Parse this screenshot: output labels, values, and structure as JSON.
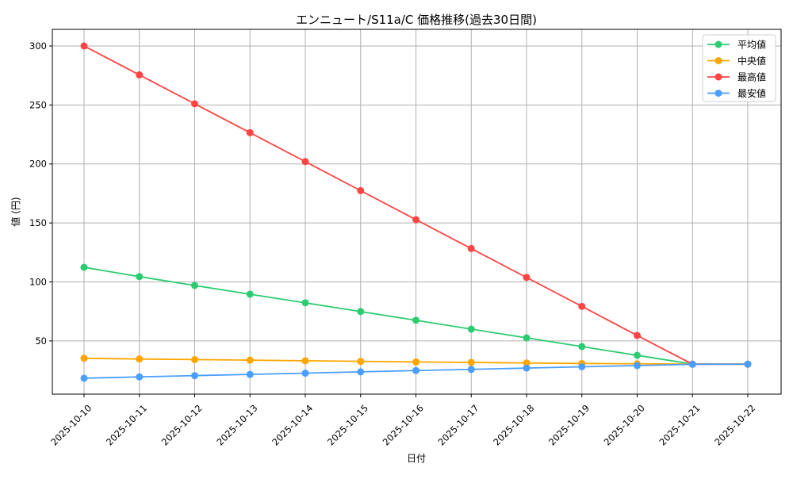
{
  "chart_data": {
    "type": "line",
    "title": "エンニュート/S11a/C 価格推移(過去30日間)",
    "xlabel": "日付",
    "ylabel": "値 (円)",
    "categories": [
      "2025-10-10",
      "2025-10-11",
      "2025-10-12",
      "2025-10-13",
      "2025-10-14",
      "2025-10-15",
      "2025-10-16",
      "2025-10-17",
      "2025-10-18",
      "2025-10-19",
      "2025-10-20",
      "2025-10-21",
      "2025-10-22"
    ],
    "ylim": [
      4.9,
      314.1
    ],
    "yticks": [
      50,
      100,
      150,
      200,
      250,
      300
    ],
    "grid": true,
    "legend_position": "top-right",
    "series": [
      {
        "name": "平均値",
        "color": "#2ecc71",
        "values": [
          112.4,
          104.5,
          97.0,
          89.6,
          82.3,
          74.9,
          67.5,
          60.0,
          52.6,
          45.2,
          37.8,
          30.4,
          30.3
        ]
      },
      {
        "name": "中央値",
        "color": "#ffa500",
        "values": [
          35.3,
          34.7,
          34.2,
          33.7,
          33.2,
          32.7,
          32.2,
          31.8,
          31.3,
          30.9,
          30.6,
          30.3,
          30.3
        ]
      },
      {
        "name": "最高値",
        "color": "#ff4444",
        "values": [
          300.0,
          275.5,
          251.0,
          226.5,
          202.0,
          177.4,
          152.8,
          128.3,
          103.8,
          79.3,
          54.6,
          30.3,
          30.3
        ]
      },
      {
        "name": "最安値",
        "color": "#4a9eff",
        "values": [
          18.4,
          19.5,
          20.6,
          21.6,
          22.7,
          23.8,
          24.9,
          25.9,
          27.0,
          28.1,
          29.1,
          30.2,
          30.3
        ]
      }
    ]
  }
}
